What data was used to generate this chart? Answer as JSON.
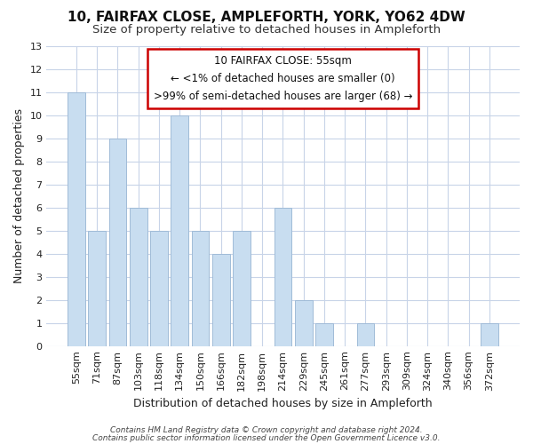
{
  "title": "10, FAIRFAX CLOSE, AMPLEFORTH, YORK, YO62 4DW",
  "subtitle": "Size of property relative to detached houses in Ampleforth",
  "xlabel": "Distribution of detached houses by size in Ampleforth",
  "ylabel": "Number of detached properties",
  "bar_labels": [
    "55sqm",
    "71sqm",
    "87sqm",
    "103sqm",
    "118sqm",
    "134sqm",
    "150sqm",
    "166sqm",
    "182sqm",
    "198sqm",
    "214sqm",
    "229sqm",
    "245sqm",
    "261sqm",
    "277sqm",
    "293sqm",
    "309sqm",
    "324sqm",
    "340sqm",
    "356sqm",
    "372sqm"
  ],
  "bar_values": [
    11,
    5,
    9,
    6,
    5,
    10,
    5,
    4,
    5,
    0,
    6,
    2,
    1,
    0,
    1,
    0,
    0,
    0,
    0,
    0,
    1
  ],
  "bar_color": "#c8ddf0",
  "bar_edge_color": "#a0bcd8",
  "ylim": [
    0,
    13
  ],
  "yticks": [
    0,
    1,
    2,
    3,
    4,
    5,
    6,
    7,
    8,
    9,
    10,
    11,
    12,
    13
  ],
  "annotation_title": "10 FAIRFAX CLOSE: 55sqm",
  "annotation_line1": "← <1% of detached houses are smaller (0)",
  "annotation_line2": ">99% of semi-detached houses are larger (68) →",
  "annotation_box_color": "#ffffff",
  "annotation_box_edge": "#cc0000",
  "footer1": "Contains HM Land Registry data © Crown copyright and database right 2024.",
  "footer2": "Contains public sector information licensed under the Open Government Licence v3.0.",
  "grid_color": "#c8d4e8",
  "background_color": "#ffffff",
  "title_fontsize": 11,
  "subtitle_fontsize": 9.5,
  "axis_label_fontsize": 9,
  "tick_fontsize": 8,
  "footer_fontsize": 6.5
}
